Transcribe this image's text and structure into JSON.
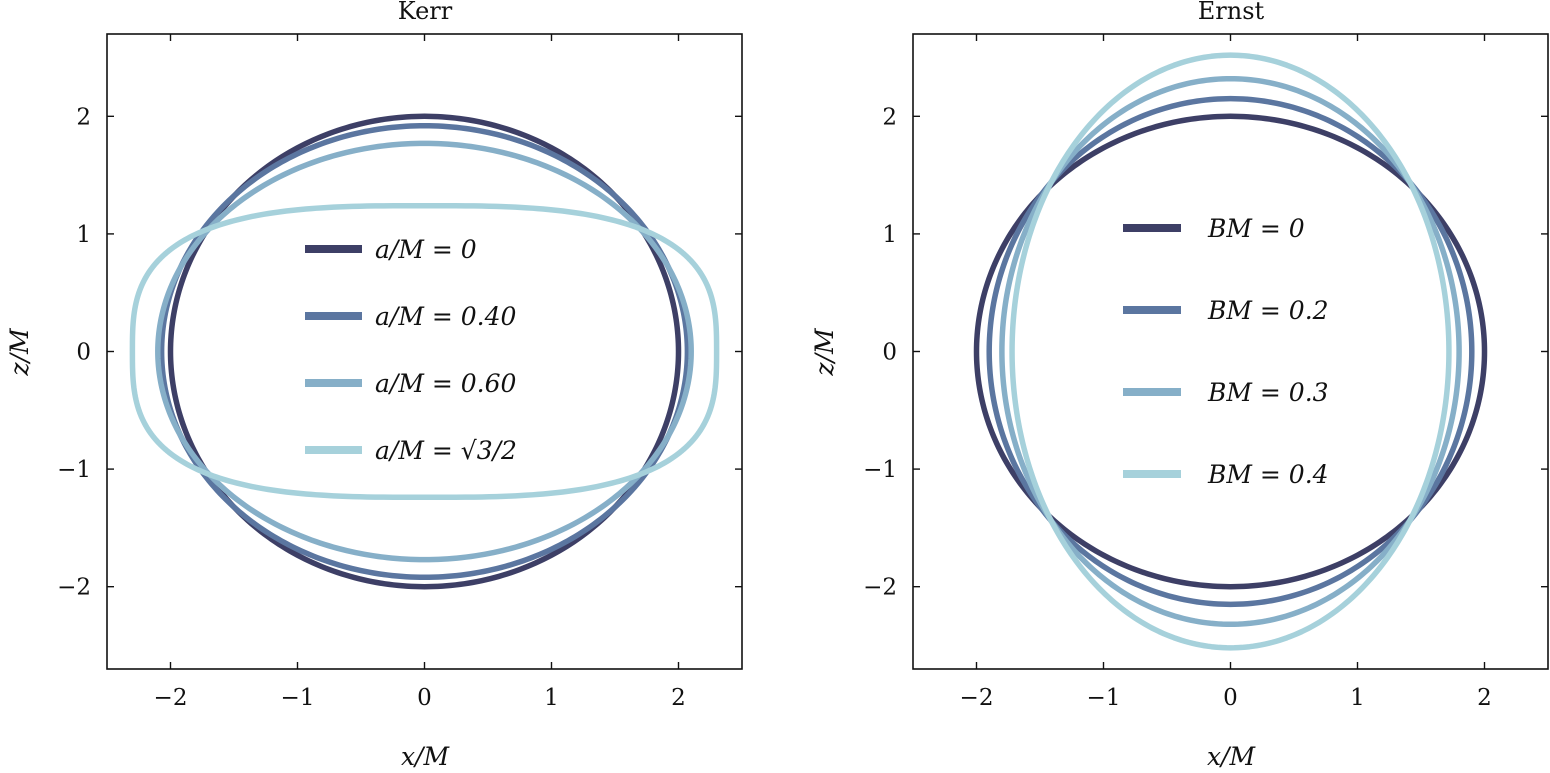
{
  "chart_data": [
    {
      "type": "line",
      "title": "Kerr",
      "xlabel": "x/M",
      "ylabel": "z/M",
      "xlim": [
        -2.5,
        2.5
      ],
      "ylim": [
        -2.7,
        2.7
      ],
      "xticks": [
        -2,
        -1,
        0,
        1,
        2
      ],
      "yticks": [
        -2,
        -1,
        0,
        1,
        2
      ],
      "xtick_labels": [
        "−2",
        "−1",
        "0",
        "1",
        "2"
      ],
      "ytick_labels": [
        "−2",
        "−1",
        "0",
        "1",
        "2"
      ],
      "grid": false,
      "legend_position": "center",
      "series": [
        {
          "name": "a/M = 0",
          "color": "#3d3f66",
          "shape": "ellipse",
          "x_semi_axis": 2.0,
          "z_semi_axis": 2.0
        },
        {
          "name": "a/M = 0.40",
          "color": "#5b76a0",
          "shape": "ellipse",
          "x_semi_axis": 2.07,
          "z_semi_axis": 1.92
        },
        {
          "name": "a/M = 0.60",
          "color": "#86afc8",
          "shape": "ellipse",
          "x_semi_axis": 2.1,
          "z_semi_axis": 1.77
        },
        {
          "name": "a/M = √3/2",
          "color": "#a6d1db",
          "shape": "superellipse",
          "x_semi_axis": 2.3,
          "z_semi_axis": 1.24,
          "exponent": 3.0
        }
      ]
    },
    {
      "type": "line",
      "title": "Ernst",
      "xlabel": "x/M",
      "ylabel": "z/M",
      "xlim": [
        -2.5,
        2.5
      ],
      "ylim": [
        -2.7,
        2.7
      ],
      "xticks": [
        -2,
        -1,
        0,
        1,
        2
      ],
      "yticks": [
        -2,
        -1,
        0,
        1,
        2
      ],
      "xtick_labels": [
        "−2",
        "−1",
        "0",
        "1",
        "2"
      ],
      "ytick_labels": [
        "−2",
        "−1",
        "0",
        "1",
        "2"
      ],
      "grid": false,
      "legend_position": "center",
      "series": [
        {
          "name": "BM = 0",
          "color": "#3d3f66",
          "shape": "ellipse",
          "x_semi_axis": 2.0,
          "z_semi_axis": 2.0
        },
        {
          "name": "BM = 0.2",
          "color": "#5b76a0",
          "shape": "ellipse",
          "x_semi_axis": 1.9,
          "z_semi_axis": 2.15
        },
        {
          "name": "BM = 0.3",
          "color": "#86afc8",
          "shape": "ellipse",
          "x_semi_axis": 1.8,
          "z_semi_axis": 2.32
        },
        {
          "name": "BM = 0.4",
          "color": "#a6d1db",
          "shape": "ellipse",
          "x_semi_axis": 1.72,
          "z_semi_axis": 2.52
        }
      ]
    }
  ]
}
